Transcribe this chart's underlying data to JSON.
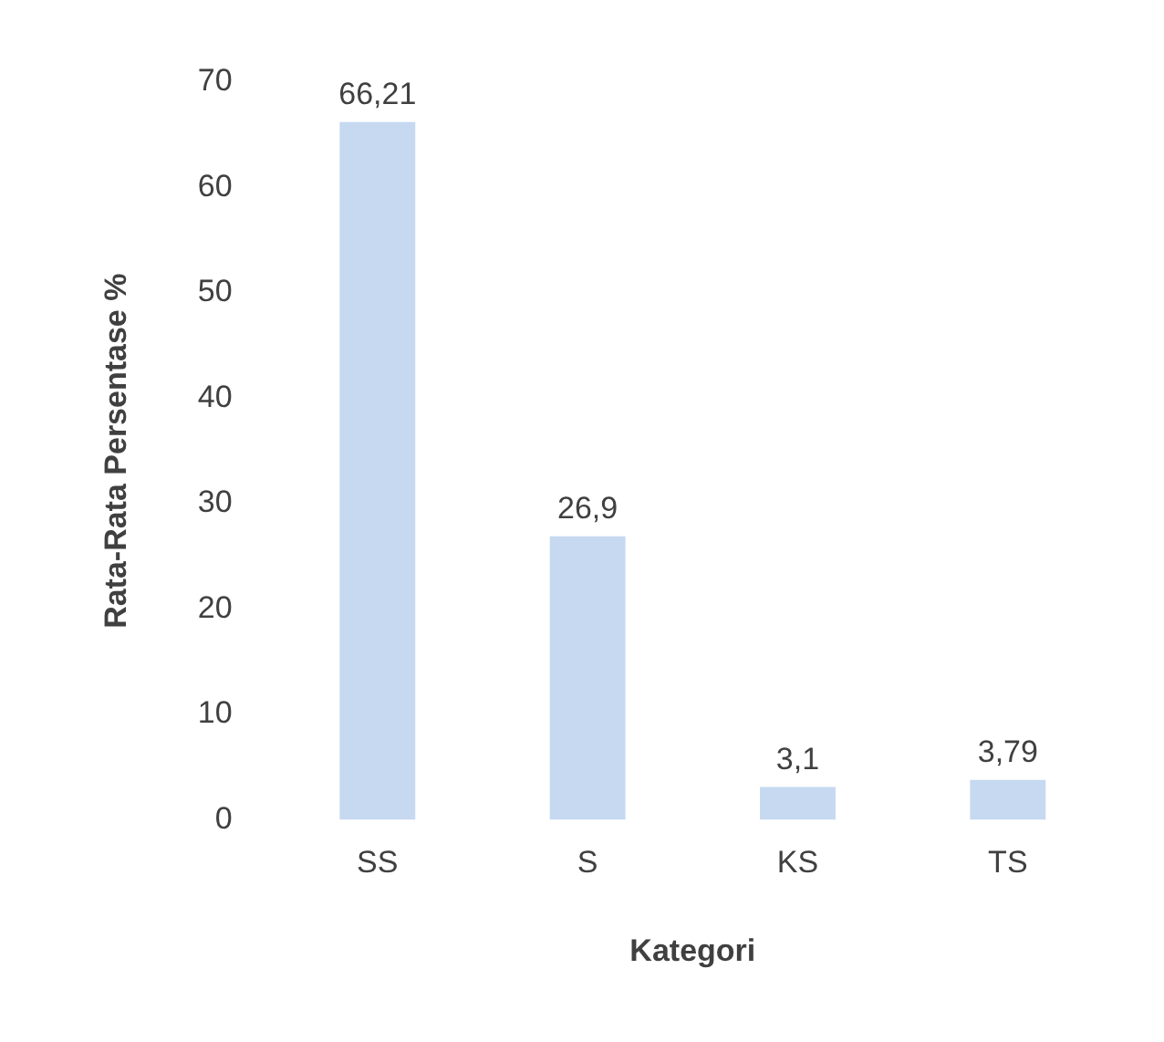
{
  "chart_data": {
    "type": "bar",
    "xlabel": "Kategori",
    "ylabel": "Rata-Rata Persentase %",
    "categories": [
      "SS",
      "S",
      "KS",
      "TS"
    ],
    "values": [
      66.21,
      26.9,
      3.1,
      3.79
    ],
    "value_labels": [
      "66,21",
      "26,9",
      "3,1",
      "3,79"
    ],
    "color": "#c6d9f1",
    "ylim": [
      0,
      70
    ],
    "yticks": [
      0,
      10,
      20,
      30,
      40,
      50,
      60,
      70
    ],
    "grid": false,
    "legend": false
  }
}
